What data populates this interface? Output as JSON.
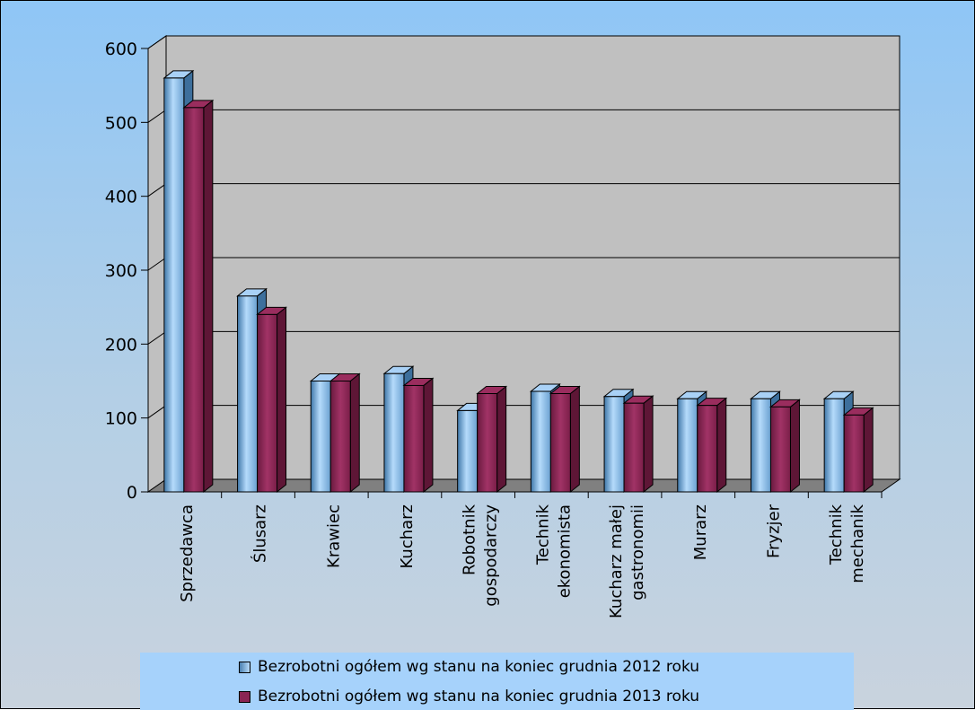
{
  "chart_data": {
    "type": "bar",
    "categories": [
      [
        "Sprzedawca"
      ],
      [
        "Ślusarz"
      ],
      [
        "Krawiec"
      ],
      [
        "Kucharz"
      ],
      [
        "Robotnik",
        "gospodarczy"
      ],
      [
        "Technik",
        "ekonomista"
      ],
      [
        "Kucharz małej",
        "gastronomii"
      ],
      [
        "Murarz"
      ],
      [
        "Fryzjer"
      ],
      [
        "Technik",
        "mechanik"
      ]
    ],
    "series": [
      {
        "name": "Bezrobotni ogółem wg stanu na koniec grudnia 2012 roku",
        "values": [
          560,
          265,
          150,
          160,
          110,
          136,
          129,
          126,
          126,
          126
        ],
        "color": "#8ec3f4"
      },
      {
        "name": "Bezrobotni ogółem wg stanu na koniec grudnia 2013 roku",
        "values": [
          520,
          240,
          150,
          144,
          133,
          133,
          120,
          117,
          115,
          104
        ],
        "color": "#8a2553"
      }
    ],
    "yticks": [
      "0",
      "100",
      "200",
      "300",
      "400",
      "500",
      "600"
    ],
    "ylim": [
      0,
      600
    ],
    "grid": true,
    "three_d": true,
    "legend_position": "bottom",
    "wall_color": "#c0c0c0",
    "floor_color": "#808080"
  }
}
